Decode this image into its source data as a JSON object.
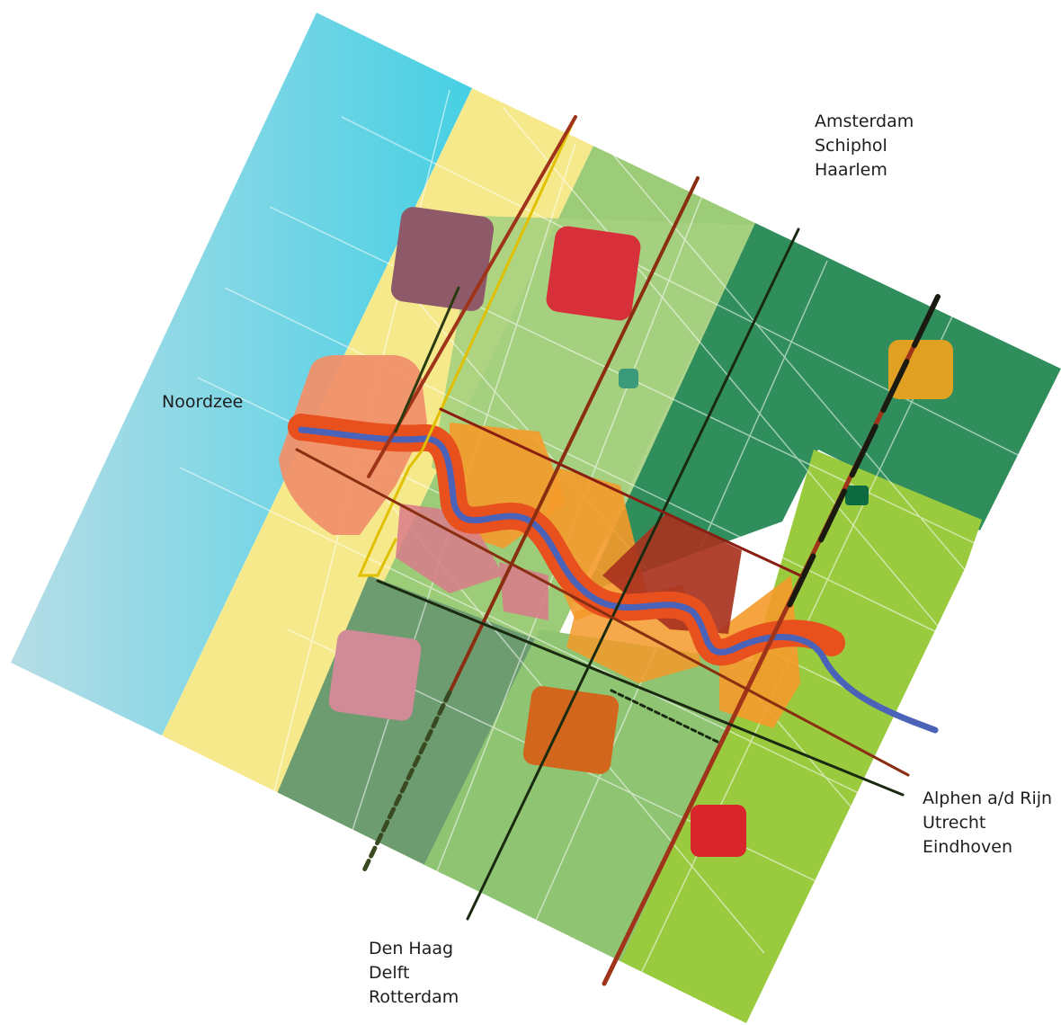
{
  "map": {
    "sea_label": "Noordzee",
    "destinations": {
      "north": [
        "Amsterdam",
        "Schiphol",
        "Haarlem"
      ],
      "east": [
        "Alphen a/d Rijn",
        "Utrecht",
        "Eindhoven"
      ],
      "south": [
        "Den Haag",
        "Delft",
        "Rotterdam"
      ]
    },
    "colors": {
      "sea": "#57c8dc",
      "dunes": "#f5e88a",
      "green_light": "#96c86e",
      "green_mid": "#6a9a6a",
      "green_dark": "#2e8a58",
      "green_bright": "#98c93c",
      "river": "#4a63b8",
      "river_band": "#e8501e",
      "urban": "#f59a2a",
      "rail_line": "#a0341a",
      "road_line": "#1a3a10",
      "grid": "#ffffff"
    }
  }
}
